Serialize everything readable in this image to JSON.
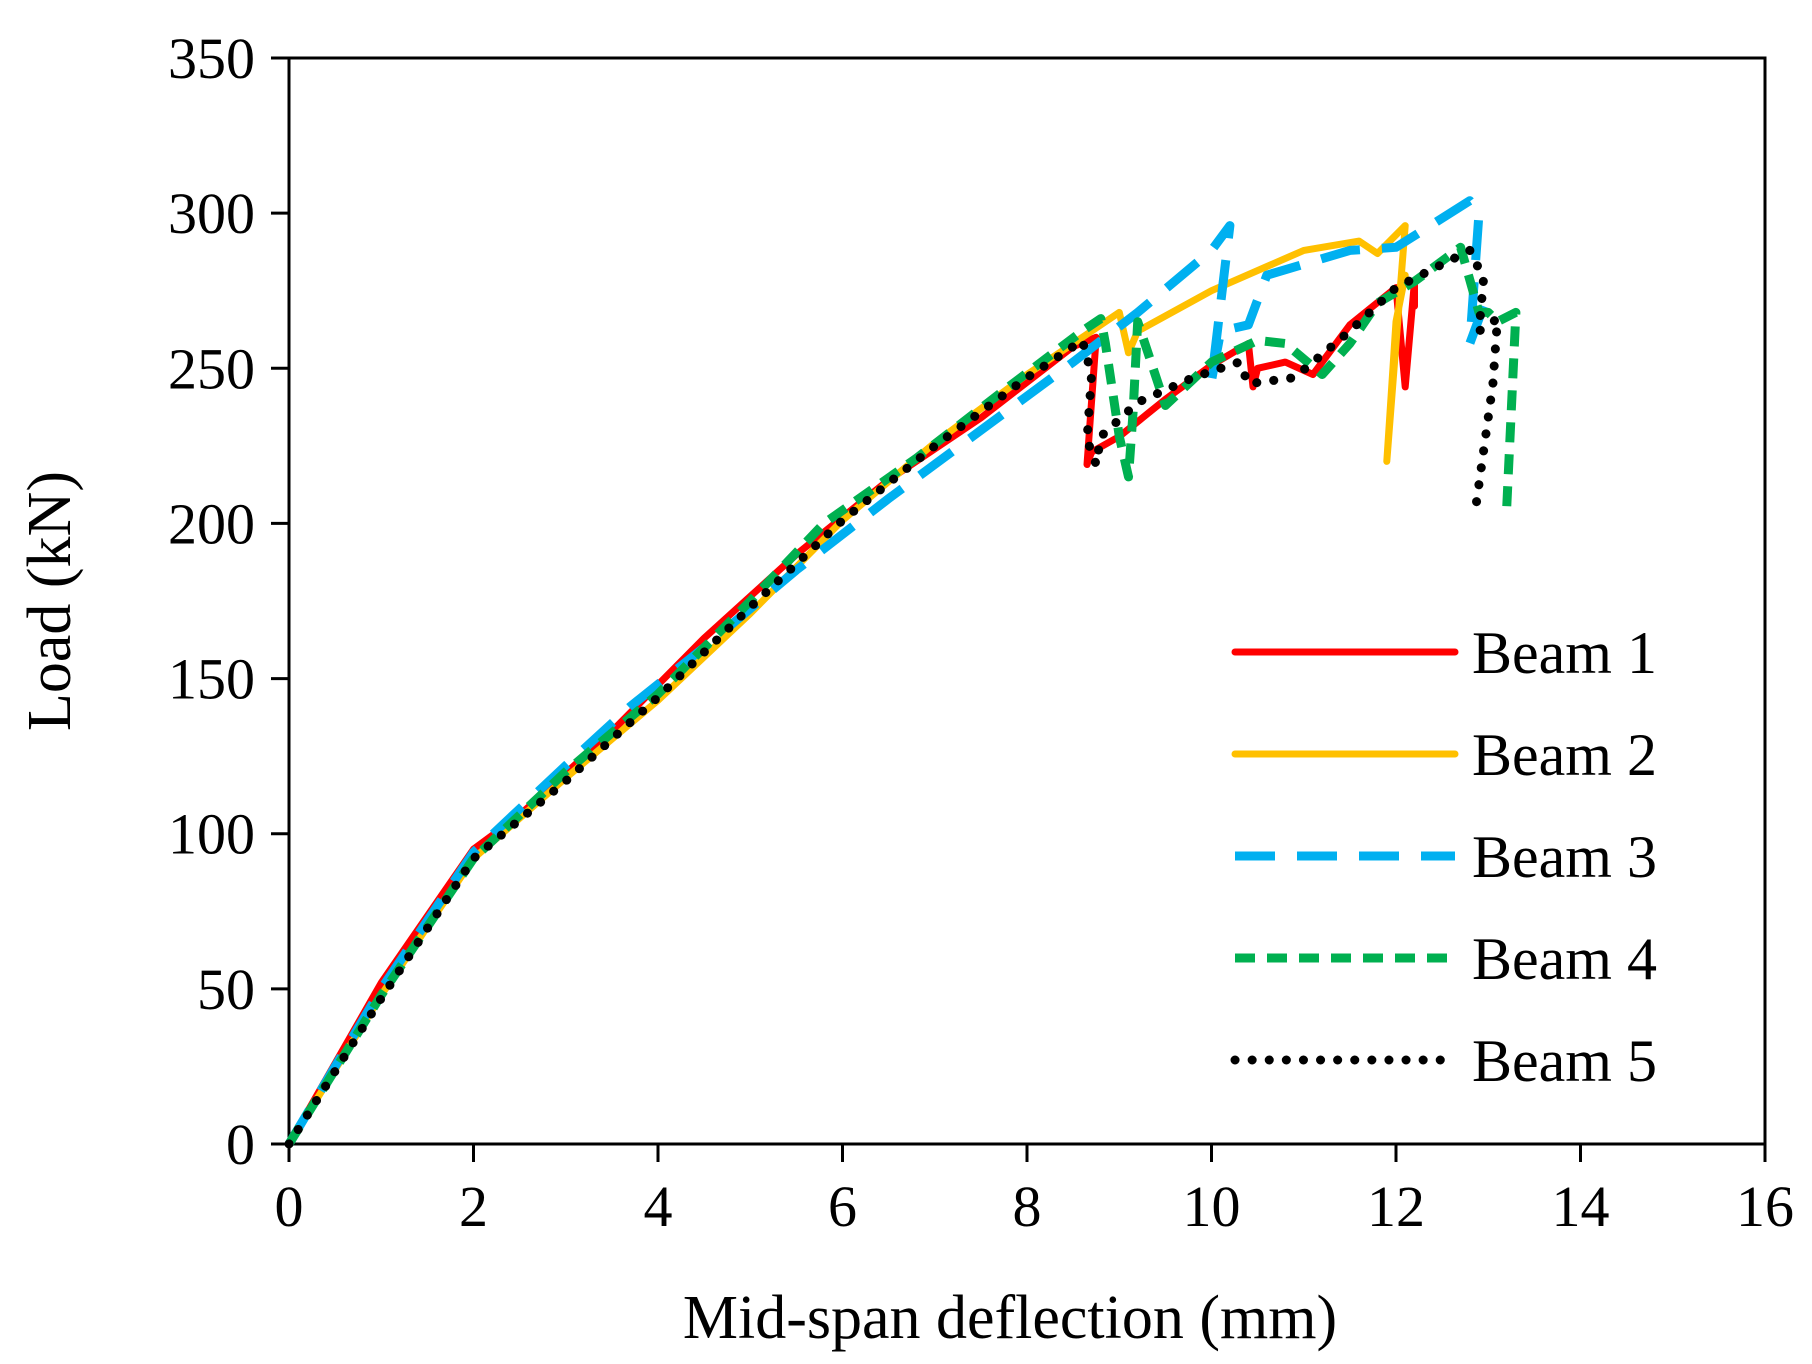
{
  "chart_data": {
    "type": "line",
    "title": "",
    "xlabel": "Mid-span deflection (mm)",
    "ylabel": "Load (kN)",
    "xlim": [
      0,
      16
    ],
    "ylim": [
      0,
      350
    ],
    "x_ticks": [
      0,
      2,
      4,
      6,
      8,
      10,
      12,
      14,
      16
    ],
    "y_ticks": [
      0,
      50,
      100,
      150,
      200,
      250,
      300,
      350
    ],
    "grid": false,
    "legend_position": "right",
    "series": [
      {
        "name": "Beam 1",
        "color": "#ff0000",
        "style": "solid",
        "x": [
          0,
          1,
          2,
          2.5,
          3.5,
          4.5,
          5.5,
          6.5,
          7.5,
          8.5,
          8.75,
          8.65,
          8.7,
          9.0,
          9.5,
          10.0,
          10.4,
          10.45,
          10.5,
          10.8,
          11.1,
          11.5,
          12.0,
          12.1,
          12.2,
          12.2
        ],
        "y": [
          0,
          52,
          95,
          106,
          133,
          163,
          190,
          214,
          234,
          257,
          260,
          219,
          223,
          228,
          240,
          251,
          258,
          244,
          250,
          252,
          248,
          264,
          276,
          244,
          278,
          270
        ]
      },
      {
        "name": "Beam 2",
        "color": "#ffc000",
        "style": "solid",
        "x": [
          0,
          1,
          2,
          3,
          4,
          5,
          6,
          7,
          8,
          8.7,
          9.0,
          9.1,
          9.2,
          10.0,
          11.0,
          11.6,
          11.8,
          12.1,
          11.9,
          12.0,
          12.1
        ],
        "y": [
          0,
          48,
          92,
          118,
          143,
          171,
          201,
          226,
          248,
          262,
          268,
          255,
          262,
          275,
          288,
          291,
          287,
          296,
          220,
          265,
          280
        ]
      },
      {
        "name": "Beam 3",
        "color": "#00b0f0",
        "style": "dashed",
        "x": [
          0,
          1,
          2,
          3,
          3.7,
          4.5,
          5.5,
          6.5,
          7.5,
          8.5,
          9.2,
          10.0,
          10.2,
          10.0,
          10.1,
          10.4,
          10.6,
          11.5,
          12.0,
          12.8,
          12.9,
          12.8,
          12.95
        ],
        "y": [
          0,
          50,
          94,
          122,
          141,
          160,
          185,
          208,
          230,
          252,
          268,
          288,
          296,
          246,
          262,
          264,
          280,
          288,
          289,
          304,
          300,
          258,
          270
        ]
      },
      {
        "name": "Beam 4",
        "color": "#00b050",
        "style": "dashed",
        "x": [
          0,
          1,
          2,
          3,
          4,
          5,
          5.8,
          6.8,
          7.8,
          8.6,
          8.8,
          8.85,
          9.0,
          9.1,
          9.15,
          9.2,
          9.5,
          10.0,
          10.5,
          10.8,
          11.2,
          11.5,
          11.8,
          12.2,
          12.7,
          12.9,
          13.0,
          13.1,
          13.3,
          13.2
        ],
        "y": [
          0,
          48,
          92,
          120,
          145,
          175,
          200,
          221,
          244,
          262,
          266,
          258,
          228,
          215,
          236,
          265,
          238,
          252,
          259,
          258,
          248,
          258,
          271,
          278,
          289,
          268,
          268,
          265,
          268,
          205
        ]
      },
      {
        "name": "Beam 5",
        "color": "#000000",
        "style": "dotted",
        "x": [
          0,
          1,
          2,
          3,
          4,
          5,
          6,
          7,
          8,
          8.6,
          8.7,
          8.65,
          8.75,
          8.8,
          9.2,
          9.8,
          10.3,
          10.4,
          10.9,
          11.5,
          12.0,
          12.8,
          12.95,
          12.9,
          13.1,
          13.05,
          12.85
        ],
        "y": [
          0,
          47,
          92,
          117,
          144,
          173,
          201,
          225,
          247,
          259,
          248,
          227,
          219,
          228,
          239,
          247,
          252,
          245,
          247,
          262,
          276,
          288,
          279,
          262,
          266,
          245,
          202
        ]
      }
    ]
  }
}
